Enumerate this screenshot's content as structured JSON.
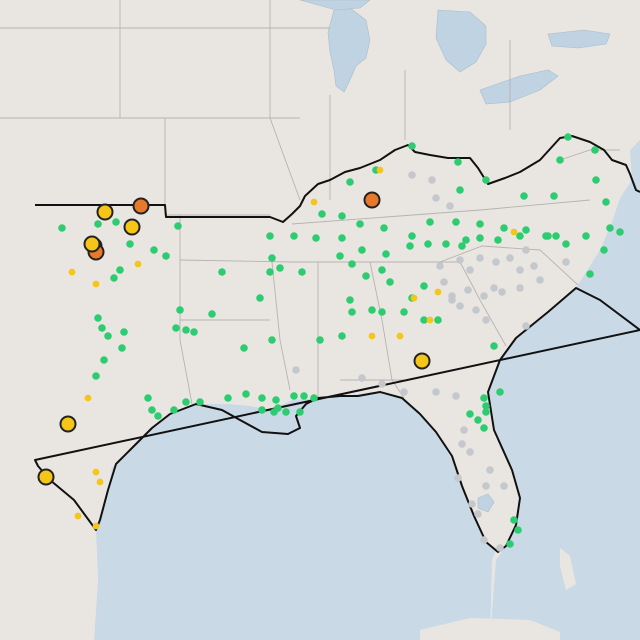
{
  "map": {
    "colors": {
      "green": "#2ecc71",
      "gray": "#c4c7cb",
      "yellow": "#f5c518",
      "orange": "#e8782a",
      "water": "#c9d9e6",
      "land": "#e9e6e2",
      "outline": "#111111"
    },
    "legend_visible": false,
    "labels_visible": false
  }
}
